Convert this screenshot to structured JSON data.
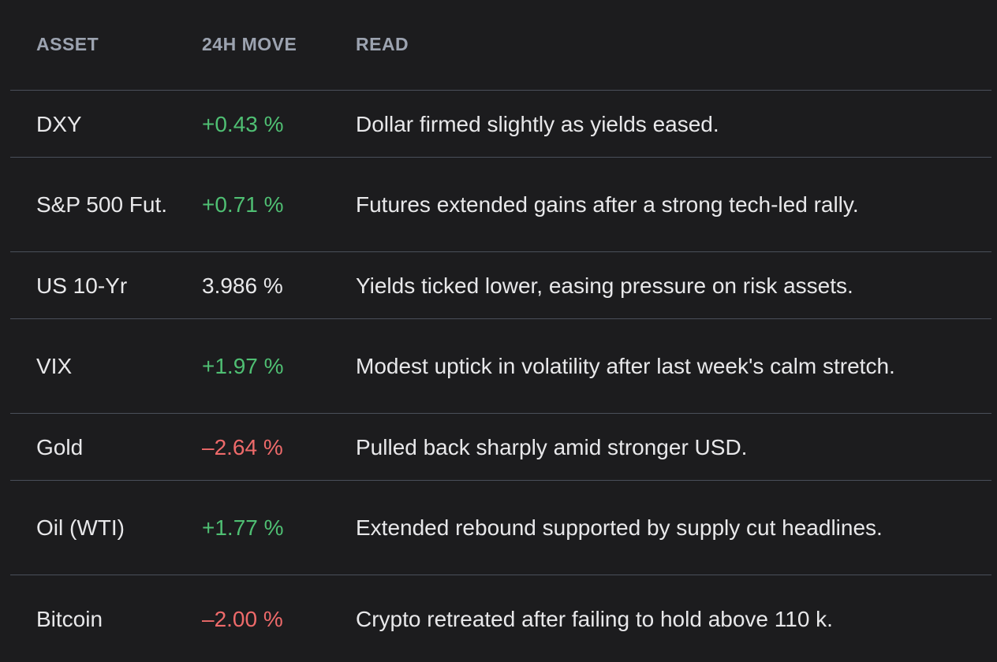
{
  "headers": {
    "asset": "ASSET",
    "move": "24H MOVE",
    "read": "READ"
  },
  "rows": [
    {
      "asset": "DXY",
      "move": "+0.43 %",
      "direction": "up",
      "read": "Dollar firmed slightly as yields eased."
    },
    {
      "asset": "S&P 500 Fut.",
      "move": "+0.71 %",
      "direction": "up",
      "read": "Futures extended gains after a strong tech-led rally."
    },
    {
      "asset": "US 10-Yr",
      "move": "3.986 %",
      "direction": "neutral",
      "read": "Yields ticked lower, easing pressure on risk assets."
    },
    {
      "asset": "VIX",
      "move": "+1.97 %",
      "direction": "up",
      "read": "Modest uptick in volatility after last week's calm stretch."
    },
    {
      "asset": "Gold",
      "move": "–2.64 %",
      "direction": "down",
      "read": "Pulled back sharply amid stronger USD."
    },
    {
      "asset": "Oil (WTI)",
      "move": "+1.77 %",
      "direction": "up",
      "read": "Extended rebound supported by supply cut headlines."
    },
    {
      "asset": "Bitcoin",
      "move": "–2.00 %",
      "direction": "down",
      "read": "Crypto retreated after failing to hold above 110 k."
    }
  ],
  "colors": {
    "background": "#1c1c1e",
    "up": "#4fbf73",
    "down": "#ee6a6a",
    "header_text": "#9ca3b0",
    "divider": "#4a4f5a"
  }
}
